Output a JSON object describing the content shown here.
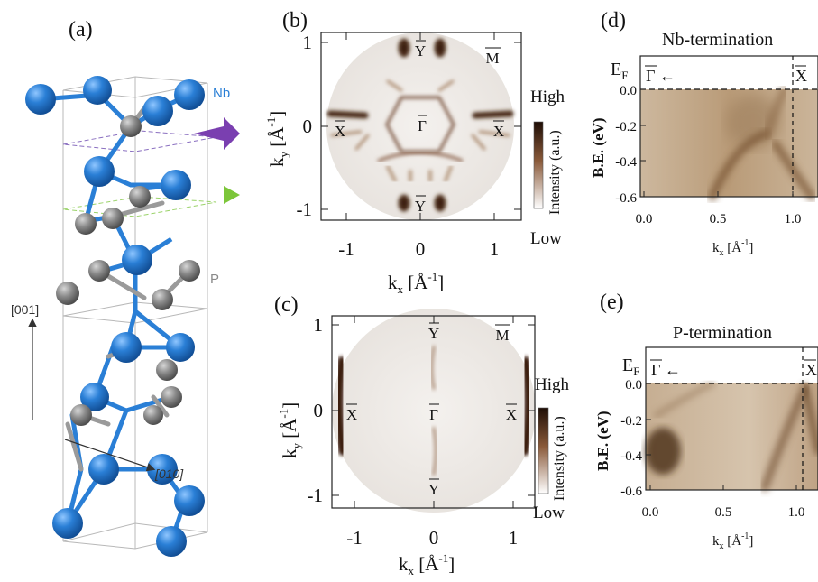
{
  "figure": {
    "panel_labels": {
      "a": "(a)",
      "b": "(b)",
      "c": "(c)",
      "d": "(d)",
      "e": "(e)"
    }
  },
  "panel_a": {
    "atom_labels": {
      "nb": "Nb",
      "p": "P"
    },
    "axis_labels": {
      "c_axis": "[001]",
      "b_axis": "[010]"
    },
    "colors": {
      "nb": "#2a7fd6",
      "p": "#8a8a8a",
      "arrow_top": "#7a3fb0",
      "arrow_bottom": "#7cc63a"
    }
  },
  "panel_b": {
    "axes": {
      "xlabel_main": "k",
      "xlabel_sub": "x",
      "xlabel_unit": " [Å",
      "xlabel_exp": "-1",
      "xlabel_close": "]",
      "ylabel_main": "k",
      "ylabel_sub": "y",
      "ylabel_unit": " [Å",
      "ylabel_exp": "-1",
      "ylabel_close": "]",
      "x_ticks": [
        "-1",
        "0",
        "1"
      ],
      "y_ticks": [
        "1",
        "0",
        "-1"
      ]
    },
    "points": {
      "y_top": "Y",
      "y_bottom": "Y",
      "m": "M",
      "x_left": "X",
      "x_right": "X",
      "gamma": "Γ"
    },
    "colorbar": {
      "high": "High",
      "low": "Low",
      "label": "Intensity (a.u.)"
    }
  },
  "panel_c": {
    "axes": {
      "xlabel_main": "k",
      "xlabel_sub": "x",
      "xlabel_unit": " [Å",
      "xlabel_exp": "-1",
      "xlabel_close": "]",
      "ylabel_main": "k",
      "ylabel_sub": "y",
      "ylabel_unit": " [Å",
      "ylabel_exp": "-1",
      "ylabel_close": "]",
      "x_ticks": [
        "-1",
        "0",
        "1"
      ],
      "y_ticks": [
        "1",
        "0",
        "-1"
      ]
    },
    "points": {
      "y_top": "Y",
      "y_bottom": "Y",
      "m": "M",
      "x_left": "X",
      "x_right": "X",
      "gamma": "Γ"
    },
    "colorbar": {
      "high": "High",
      "low": "Low",
      "label": "Intensity (a.u.)"
    }
  },
  "panel_d": {
    "title": "Nb-termination",
    "ef_main": "E",
    "ef_sub": "F",
    "gamma": "Γ",
    "arrow": "←",
    "x_point": "X",
    "ylabel": "B.E. (eV)",
    "y_ticks": [
      "0.0",
      "-0.2",
      "-0.4",
      "-0.6"
    ],
    "x_ticks": [
      "0.0",
      "0.5",
      "1.0"
    ],
    "xlabel_main": "k",
    "xlabel_sub": "x",
    "xlabel_unit": " [Å",
    "xlabel_exp": "-1",
    "xlabel_close": "]"
  },
  "panel_e": {
    "title": "P-termination",
    "ef_main": "E",
    "ef_sub": "F",
    "gamma": "Γ",
    "arrow": "←",
    "x_point": "X",
    "ylabel": "B.E. (eV)",
    "y_ticks": [
      "0.0",
      "-0.2",
      "-0.4",
      "-0.6"
    ],
    "x_ticks": [
      "0.0",
      "0.5",
      "1.0"
    ],
    "xlabel_main": "k",
    "xlabel_sub": "x",
    "xlabel_unit": " [Å",
    "xlabel_exp": "-1",
    "xlabel_close": "]"
  }
}
